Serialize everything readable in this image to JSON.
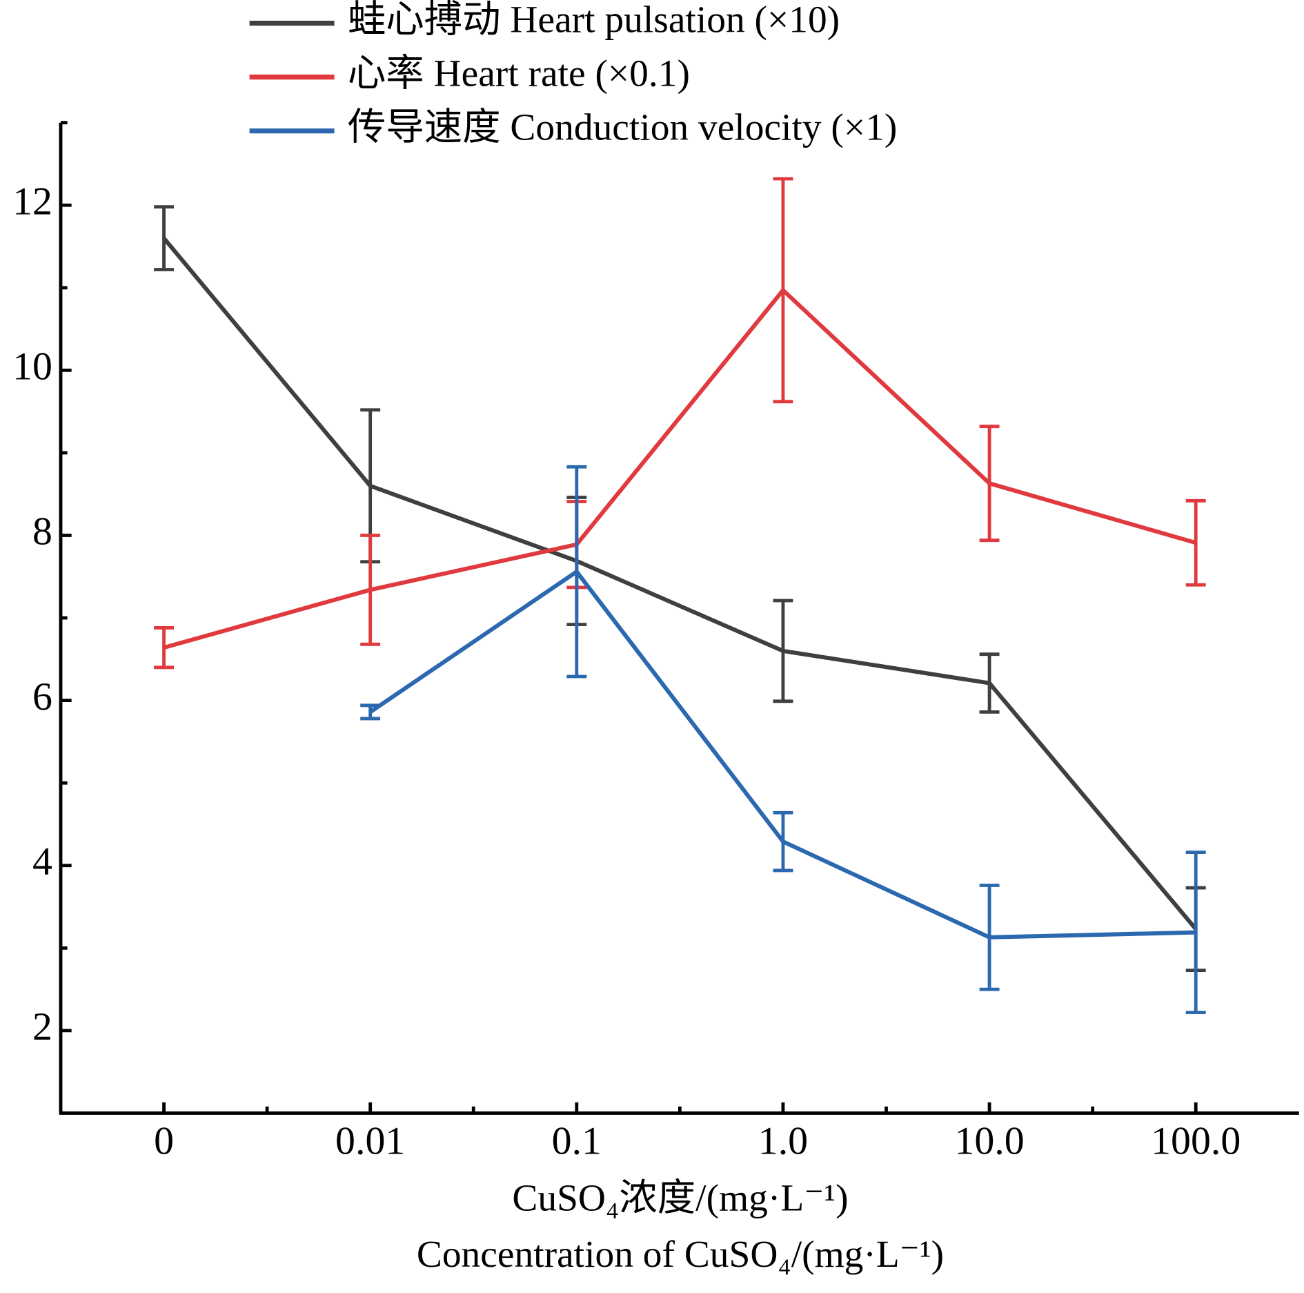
{
  "chart_data": {
    "type": "line",
    "categories": [
      "0",
      "0.01",
      "0.1",
      "1.0",
      "10.0",
      "100.0"
    ],
    "series": [
      {
        "name": "蛙心搏动 Heart pulsation (×10)",
        "color": "#3f3f3f",
        "values": [
          11.6,
          8.6,
          7.69,
          6.6,
          6.21,
          3.23
        ],
        "errors": [
          0.38,
          0.92,
          0.77,
          0.61,
          0.35,
          0.5
        ]
      },
      {
        "name": "心率 Heart rate (×0.1)",
        "color": "#e03a3e",
        "values": [
          6.64,
          7.34,
          7.89,
          10.97,
          8.63,
          7.91
        ],
        "errors": [
          0.24,
          0.66,
          0.52,
          1.35,
          0.69,
          0.51
        ]
      },
      {
        "name": "传导速度 Conduction velocity (×1)",
        "color": "#2c68b0",
        "values": [
          null,
          5.86,
          7.56,
          4.29,
          3.13,
          3.19
        ],
        "errors": [
          null,
          0.08,
          1.27,
          0.35,
          0.63,
          0.97
        ]
      }
    ],
    "xlabel": [
      "CuSO₄浓度/(mg·L⁻¹)",
      "Concentration of CuSO₄/(mg·L⁻¹)"
    ],
    "ylim": [
      1,
      13
    ],
    "yticks": [
      2,
      4,
      6,
      8,
      10,
      12
    ],
    "yminorticks": [
      3,
      5,
      7,
      9,
      11,
      13
    ],
    "legend": "top"
  }
}
